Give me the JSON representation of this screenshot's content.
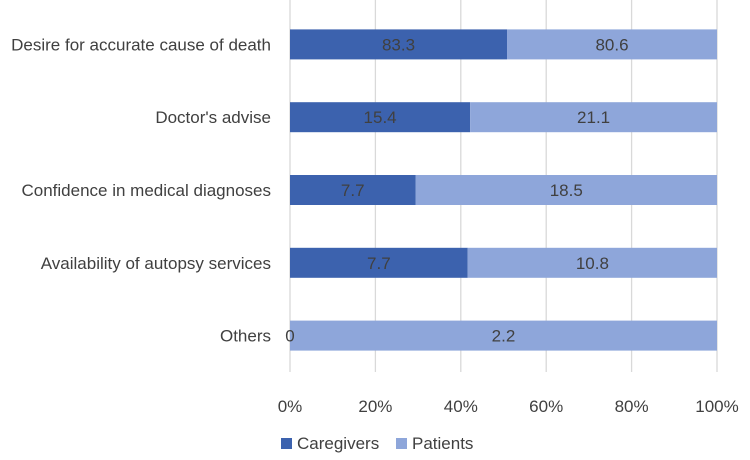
{
  "chart_data": {
    "type": "bar",
    "orientation": "horizontal",
    "stacking": "percent",
    "categories": [
      "Desire for accurate cause of death",
      "Doctor's advise",
      "Confidence in medical diagnoses",
      "Availability of autopsy services",
      "Others"
    ],
    "series": [
      {
        "name": "Caregivers",
        "color": "#3C62AE",
        "values": [
          83.3,
          15.4,
          7.7,
          7.7,
          0
        ]
      },
      {
        "name": "Patients",
        "color": "#8EA6DA",
        "values": [
          80.6,
          21.1,
          18.5,
          10.8,
          2.2
        ]
      }
    ],
    "data_labels": [
      [
        "83.3",
        "15.4",
        "7.7",
        "7.7",
        "0"
      ],
      [
        "80.6",
        "21.1",
        "18.5",
        "10.8",
        "2.2"
      ]
    ],
    "x_ticks": [
      "0%",
      "20%",
      "40%",
      "60%",
      "80%",
      "100%"
    ],
    "xlim": [
      0,
      100
    ],
    "grid": true,
    "legend_position": "bottom",
    "title": "",
    "xlabel": "",
    "ylabel": ""
  }
}
